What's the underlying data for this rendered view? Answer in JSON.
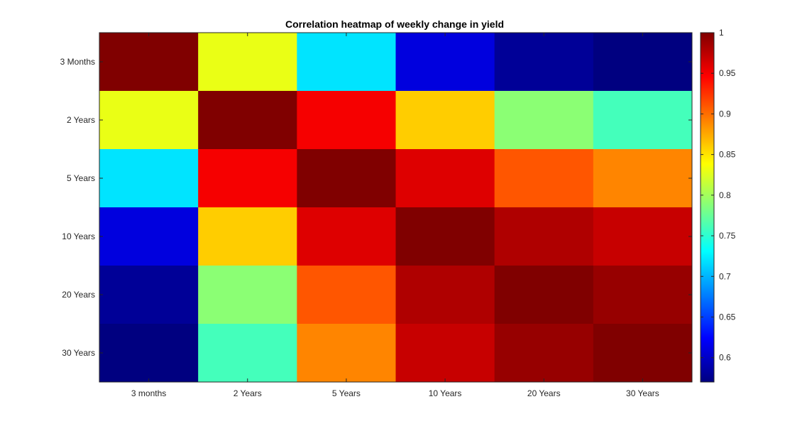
{
  "chart_data": {
    "type": "heatmap",
    "title": "Correlation heatmap of weekly change in yield",
    "xlabel": "",
    "ylabel": "",
    "x_categories": [
      "3 months",
      "2 Years",
      "5 Years",
      "10 Years",
      "20 Years",
      "30 Years"
    ],
    "y_categories": [
      "3 Months",
      "2 Years",
      "5 Years",
      "10 Years",
      "20 Years",
      "30 Years"
    ],
    "values": [
      [
        1.0,
        0.83,
        0.72,
        0.61,
        0.58,
        0.57
      ],
      [
        0.83,
        1.0,
        0.95,
        0.86,
        0.79,
        0.76
      ],
      [
        0.72,
        0.95,
        1.0,
        0.96,
        0.91,
        0.89
      ],
      [
        0.61,
        0.86,
        0.96,
        1.0,
        0.98,
        0.97
      ],
      [
        0.58,
        0.79,
        0.91,
        0.98,
        1.0,
        0.99
      ],
      [
        0.57,
        0.76,
        0.89,
        0.97,
        0.99,
        1.0
      ]
    ],
    "colorbar": {
      "colormap": "jet",
      "range": [
        0.57,
        1.0
      ],
      "ticks": [
        0.6,
        0.65,
        0.7,
        0.75,
        0.8,
        0.85,
        0.9,
        0.95,
        1
      ],
      "tick_labels": [
        "0.6",
        "0.65",
        "0.7",
        "0.75",
        "0.8",
        "0.85",
        "0.9",
        "0.95",
        "1"
      ]
    },
    "grid": false,
    "legend": "colorbar-right"
  }
}
